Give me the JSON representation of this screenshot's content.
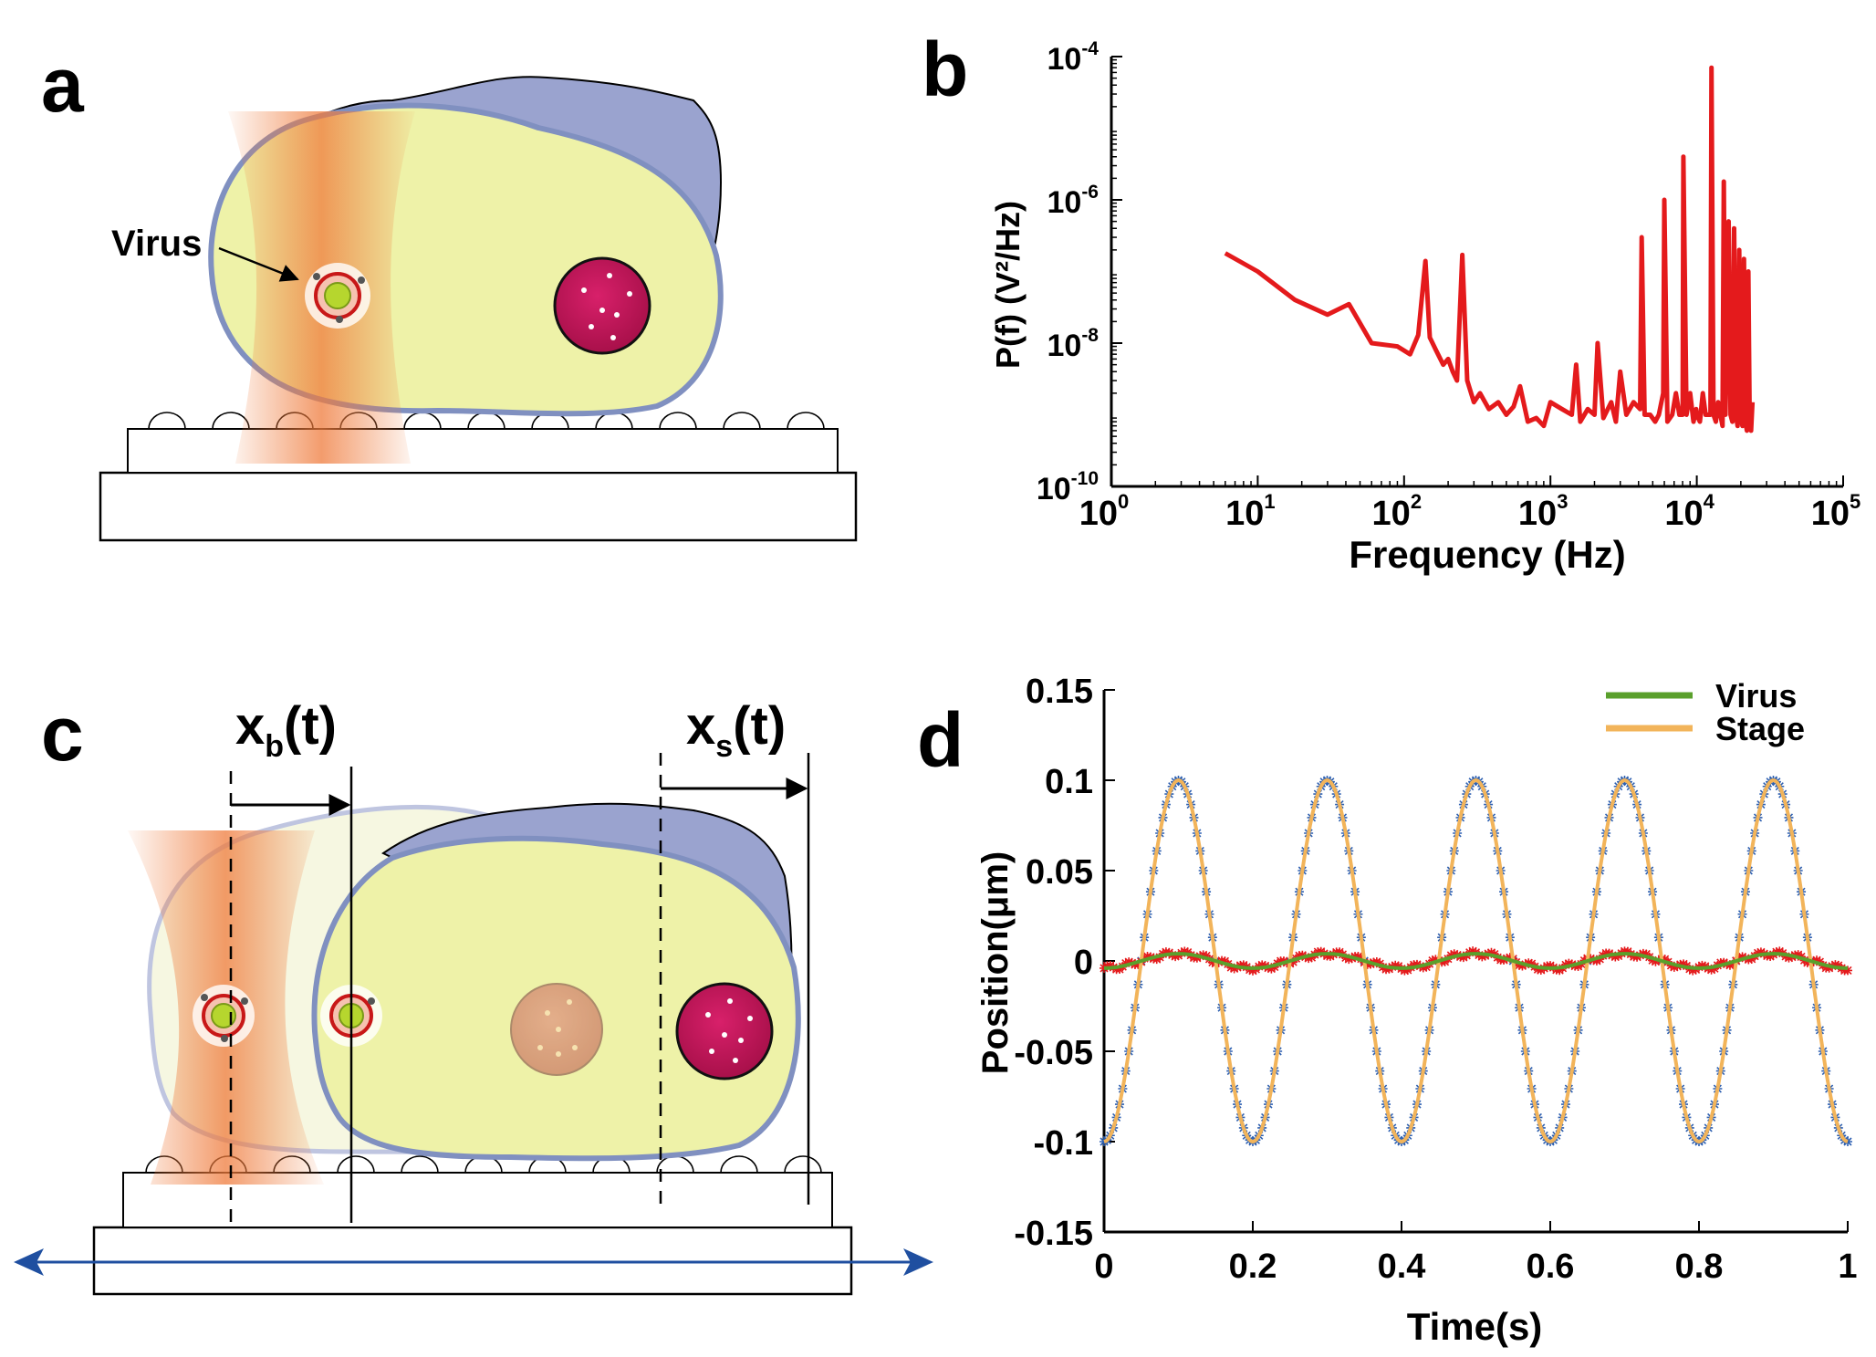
{
  "panels": {
    "a": {
      "letter": "a",
      "virus_label": "Virus"
    },
    "b": {
      "letter": "b"
    },
    "c": {
      "letter": "c",
      "xb_main": "x",
      "xb_sub": "b",
      "xb_tail": "(t)",
      "xs_main": "x",
      "xs_sub": "s",
      "xs_tail": "(t)"
    },
    "d": {
      "letter": "d"
    }
  },
  "colors": {
    "cell_fill": "#eef2a8",
    "cell_outline": "#8090c0",
    "cell_shadow": "#9aa3cf",
    "nucleus": "#c8185a",
    "laser": "#ef7b3c",
    "spectrum": "#e41a1c",
    "stage_fit": "#f2b45a",
    "stage_points": "#2d5fb0",
    "virus_fit": "#5aa02c",
    "virus_points": "#e41a1c",
    "arrow_blue": "#1f4fa0"
  },
  "chart_data": [
    {
      "panel": "b",
      "type": "line",
      "xlabel": "Frequency (Hz)",
      "ylabel": "P(f) (V²/Hz)",
      "xscale": "log",
      "yscale": "log",
      "xlim": [
        1,
        100000
      ],
      "ylim": [
        1e-10,
        0.0001
      ],
      "x_ticks": [
        {
          "base": "10",
          "exp": "0"
        },
        {
          "base": "10",
          "exp": "1"
        },
        {
          "base": "10",
          "exp": "2"
        },
        {
          "base": "10",
          "exp": "3"
        },
        {
          "base": "10",
          "exp": "4"
        },
        {
          "base": "10",
          "exp": "5"
        }
      ],
      "y_ticks": [
        {
          "base": "10",
          "exp": "-10",
          "value": -10
        },
        {
          "base": "10",
          "exp": "-8",
          "value": -8
        },
        {
          "base": "10",
          "exp": "-6",
          "value": -6
        },
        {
          "base": "10",
          "exp": "-4",
          "value": -4
        }
      ],
      "series": [
        {
          "color": "#e41a1c",
          "x": [
            6,
            10,
            18,
            30,
            42,
            60,
            90,
            110,
            125,
            140,
            150,
            165,
            185,
            200,
            215,
            230,
            250,
            270,
            300,
            330,
            380,
            440,
            500,
            560,
            620,
            700,
            800,
            900,
            1000,
            1200,
            1400,
            1500,
            1600,
            1800,
            2000,
            2100,
            2300,
            2600,
            2800,
            3000,
            3300,
            3700,
            4100,
            4200,
            4400,
            4800,
            5200,
            5500,
            5900,
            6000,
            6300,
            6800,
            7200,
            7600,
            8000,
            8100,
            8500,
            9000,
            9500,
            9900,
            10000,
            10500,
            11000,
            11500,
            12000,
            12400,
            12600,
            13000,
            13500,
            14000,
            14500,
            15000,
            15300,
            15700,
            16500,
            17000,
            17500,
            18000,
            18500,
            19000,
            19500,
            20000,
            20500,
            21000,
            21500,
            22000,
            22500,
            23000,
            23500,
            24000
          ],
          "y": [
            1.8e-07,
            1e-07,
            4e-08,
            2.5e-08,
            3.5e-08,
            1e-08,
            9e-09,
            7e-09,
            1.3e-08,
            1.4e-07,
            1.2e-08,
            8e-09,
            5e-09,
            6e-09,
            4e-09,
            3e-09,
            1.7e-07,
            3e-09,
            1.5e-09,
            2e-09,
            1.2e-09,
            1.5e-09,
            1e-09,
            1.3e-09,
            2.5e-09,
            8e-10,
            9e-10,
            7e-10,
            1.5e-09,
            1.2e-09,
            1e-09,
            5e-09,
            8e-10,
            1.2e-09,
            1e-09,
            1e-08,
            9e-10,
            1.5e-09,
            8e-10,
            4e-09,
            1e-09,
            1.5e-09,
            1.2e-09,
            3e-07,
            1e-09,
            1e-09,
            8e-10,
            1e-09,
            2e-09,
            1e-06,
            8e-10,
            1e-09,
            2e-09,
            1e-09,
            1e-09,
            4e-06,
            1e-09,
            2e-09,
            8e-10,
            1.2e-09,
            1e-09,
            8e-10,
            2e-09,
            1e-09,
            1e-09,
            1e-09,
            7e-05,
            1e-09,
            8e-10,
            1.5e-09,
            1e-09,
            7e-10,
            1.8e-06,
            1e-09,
            5e-07,
            1e-09,
            8e-10,
            4e-07,
            1e-09,
            7e-10,
            2e-07,
            1e-09,
            7e-10,
            1.5e-07,
            8e-10,
            6e-10,
            1e-07,
            7e-10,
            6e-10,
            1.5e-09
          ]
        }
      ]
    },
    {
      "panel": "d",
      "type": "line",
      "xlabel": "Time(s)",
      "ylabel": "Position(μm)",
      "xlim": [
        0,
        1
      ],
      "ylim": [
        -0.15,
        0.15
      ],
      "x_ticks": [
        "0",
        "0.2",
        "0.4",
        "0.6",
        "0.8",
        "1"
      ],
      "y_ticks": [
        "-0.15",
        "-0.1",
        "-0.05",
        "0",
        "0.05",
        "0.1",
        "0.15"
      ],
      "y_tick_values": [
        -0.15,
        -0.1,
        -0.05,
        0,
        0.05,
        0.1,
        0.15
      ],
      "legend_position": "top-right",
      "series": [
        {
          "name": "Virus",
          "color": "#5aa02c",
          "points_color": "#e41a1c",
          "amplitude": 0.004,
          "frequency_hz": 5,
          "phase_deg": -90,
          "offset": 0
        },
        {
          "name": "Stage",
          "color": "#f2b45a",
          "points_color": "#2d5fb0",
          "amplitude": 0.1,
          "frequency_hz": 5,
          "phase_deg": -90,
          "offset": 0
        }
      ]
    }
  ]
}
